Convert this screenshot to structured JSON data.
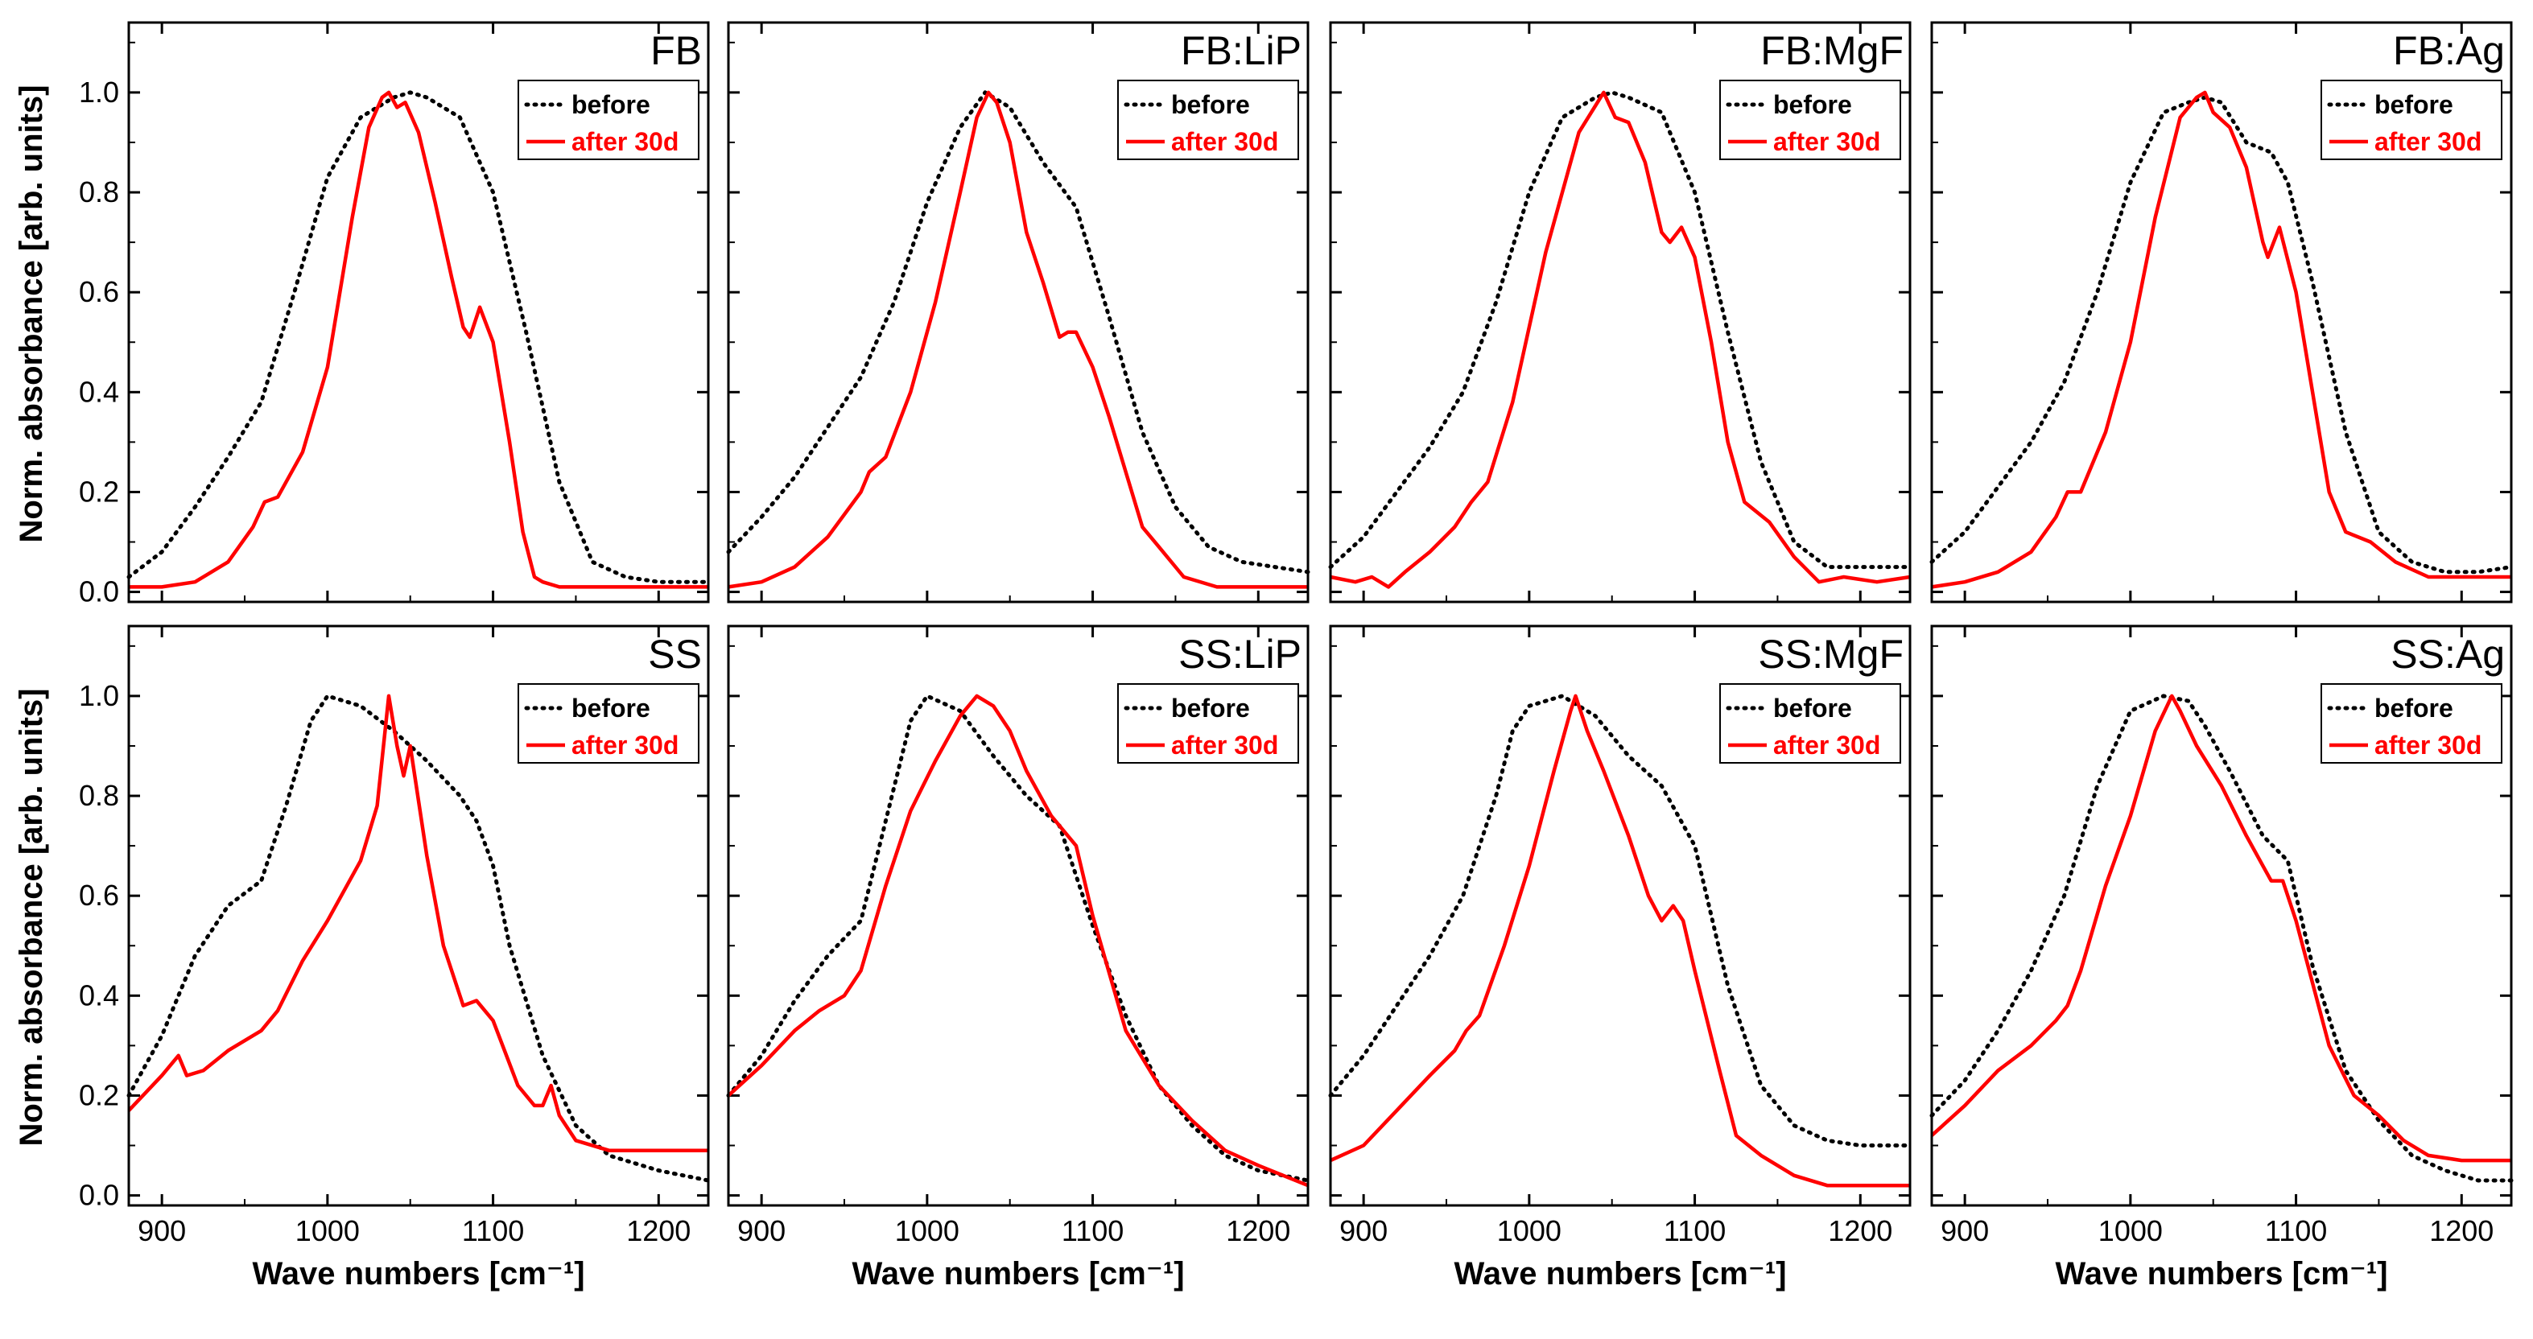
{
  "colors": {
    "before": "#000000",
    "after": "#ff0000"
  },
  "axes": {
    "xlabel": "Wave numbers [cm⁻¹]",
    "ylabel": "Norm. absorbance [arb. units]",
    "xlim": [
      880,
      1230
    ],
    "ylim": [
      -0.02,
      1.14
    ],
    "xticks": [
      "900",
      "1000",
      "1100",
      "1200"
    ],
    "yticks": [
      "0.0",
      "0.2",
      "0.4",
      "0.6",
      "0.8",
      "1.0"
    ]
  },
  "chart_data": [
    {
      "type": "line",
      "title": "FB",
      "xlabel": "",
      "ylabel": "Norm. absorbance [arb. units]",
      "xlim": [
        880,
        1230
      ],
      "ylim": [
        -0.02,
        1.14
      ],
      "grid": false,
      "legend": "top-right",
      "series": [
        {
          "name": "before",
          "style": "dotted",
          "color": "#000000",
          "x": [
            880,
            900,
            920,
            940,
            960,
            980,
            1000,
            1020,
            1040,
            1050,
            1060,
            1080,
            1100,
            1120,
            1140,
            1160,
            1180,
            1200,
            1230
          ],
          "y": [
            0.03,
            0.08,
            0.17,
            0.27,
            0.38,
            0.6,
            0.83,
            0.95,
            0.99,
            1.0,
            0.99,
            0.95,
            0.8,
            0.52,
            0.22,
            0.06,
            0.03,
            0.02,
            0.02
          ]
        },
        {
          "name": "after 30d",
          "style": "solid",
          "color": "#ff0000",
          "x": [
            880,
            900,
            920,
            940,
            955,
            962,
            970,
            985,
            1000,
            1015,
            1025,
            1033,
            1037,
            1042,
            1047,
            1055,
            1065,
            1075,
            1082,
            1086,
            1092,
            1100,
            1110,
            1118,
            1125,
            1130,
            1140,
            1160,
            1200,
            1230
          ],
          "y": [
            0.01,
            0.01,
            0.02,
            0.06,
            0.13,
            0.18,
            0.19,
            0.28,
            0.45,
            0.75,
            0.93,
            0.99,
            1.0,
            0.97,
            0.98,
            0.92,
            0.78,
            0.63,
            0.53,
            0.51,
            0.57,
            0.5,
            0.3,
            0.12,
            0.03,
            0.02,
            0.01,
            0.01,
            0.01,
            0.01
          ]
        }
      ]
    },
    {
      "type": "line",
      "title": "FB:LiP",
      "xlabel": "",
      "ylabel": "",
      "xlim": [
        880,
        1230
      ],
      "ylim": [
        -0.02,
        1.14
      ],
      "grid": false,
      "legend": "top-right",
      "series": [
        {
          "name": "before",
          "style": "dotted",
          "color": "#000000",
          "x": [
            880,
            900,
            920,
            940,
            960,
            980,
            1000,
            1020,
            1035,
            1050,
            1070,
            1090,
            1110,
            1130,
            1150,
            1170,
            1190,
            1210,
            1230
          ],
          "y": [
            0.08,
            0.15,
            0.23,
            0.33,
            0.43,
            0.58,
            0.78,
            0.93,
            1.0,
            0.97,
            0.86,
            0.77,
            0.55,
            0.32,
            0.17,
            0.09,
            0.06,
            0.05,
            0.04
          ]
        },
        {
          "name": "after 30d",
          "style": "solid",
          "color": "#ff0000",
          "x": [
            880,
            900,
            920,
            940,
            960,
            965,
            975,
            990,
            1005,
            1020,
            1030,
            1037,
            1042,
            1050,
            1060,
            1070,
            1080,
            1085,
            1090,
            1100,
            1110,
            1120,
            1130,
            1140,
            1155,
            1175,
            1200,
            1230
          ],
          "y": [
            0.01,
            0.02,
            0.05,
            0.11,
            0.2,
            0.24,
            0.27,
            0.4,
            0.58,
            0.8,
            0.95,
            1.0,
            0.98,
            0.9,
            0.72,
            0.62,
            0.51,
            0.52,
            0.52,
            0.45,
            0.35,
            0.24,
            0.13,
            0.09,
            0.03,
            0.01,
            0.01,
            0.01
          ]
        }
      ]
    },
    {
      "type": "line",
      "title": "FB:MgF",
      "xlabel": "",
      "ylabel": "",
      "xlim": [
        880,
        1230
      ],
      "ylim": [
        -0.02,
        1.14
      ],
      "grid": false,
      "legend": "top-right",
      "series": [
        {
          "name": "before",
          "style": "dotted",
          "color": "#000000",
          "x": [
            880,
            900,
            920,
            940,
            960,
            980,
            1000,
            1020,
            1040,
            1050,
            1060,
            1080,
            1100,
            1120,
            1140,
            1160,
            1180,
            1200,
            1230
          ],
          "y": [
            0.05,
            0.11,
            0.2,
            0.29,
            0.4,
            0.58,
            0.8,
            0.95,
            0.99,
            1.0,
            0.99,
            0.96,
            0.8,
            0.52,
            0.26,
            0.1,
            0.05,
            0.05,
            0.05
          ]
        },
        {
          "name": "after 30d",
          "style": "solid",
          "color": "#ff0000",
          "x": [
            880,
            895,
            905,
            915,
            925,
            940,
            955,
            965,
            975,
            990,
            1010,
            1030,
            1045,
            1052,
            1060,
            1070,
            1080,
            1085,
            1092,
            1100,
            1110,
            1120,
            1130,
            1145,
            1160,
            1175,
            1190,
            1210,
            1230
          ],
          "y": [
            0.03,
            0.02,
            0.03,
            0.01,
            0.04,
            0.08,
            0.13,
            0.18,
            0.22,
            0.38,
            0.68,
            0.92,
            1.0,
            0.95,
            0.94,
            0.86,
            0.72,
            0.7,
            0.73,
            0.67,
            0.5,
            0.3,
            0.18,
            0.14,
            0.07,
            0.02,
            0.03,
            0.02,
            0.03
          ]
        }
      ]
    },
    {
      "type": "line",
      "title": "FB:Ag",
      "xlabel": "",
      "ylabel": "",
      "xlim": [
        880,
        1230
      ],
      "ylim": [
        -0.02,
        1.14
      ],
      "grid": false,
      "legend": "top-right",
      "series": [
        {
          "name": "before",
          "style": "dotted",
          "color": "#000000",
          "x": [
            880,
            900,
            920,
            940,
            960,
            980,
            1000,
            1020,
            1035,
            1045,
            1055,
            1070,
            1085,
            1095,
            1110,
            1130,
            1150,
            1170,
            1190,
            1210,
            1230
          ],
          "y": [
            0.06,
            0.12,
            0.21,
            0.3,
            0.42,
            0.6,
            0.82,
            0.96,
            0.98,
            0.99,
            0.98,
            0.9,
            0.88,
            0.82,
            0.62,
            0.32,
            0.12,
            0.06,
            0.04,
            0.04,
            0.05
          ]
        },
        {
          "name": "after 30d",
          "style": "solid",
          "color": "#ff0000",
          "x": [
            880,
            900,
            920,
            940,
            955,
            962,
            970,
            985,
            1000,
            1015,
            1030,
            1040,
            1045,
            1050,
            1060,
            1070,
            1080,
            1083,
            1090,
            1100,
            1110,
            1120,
            1130,
            1145,
            1160,
            1180,
            1200,
            1230
          ],
          "y": [
            0.01,
            0.02,
            0.04,
            0.08,
            0.15,
            0.2,
            0.2,
            0.32,
            0.5,
            0.75,
            0.95,
            0.99,
            1.0,
            0.96,
            0.93,
            0.85,
            0.7,
            0.67,
            0.73,
            0.6,
            0.4,
            0.2,
            0.12,
            0.1,
            0.06,
            0.03,
            0.03,
            0.03
          ]
        }
      ]
    },
    {
      "type": "line",
      "title": "SS",
      "xlabel": "Wave numbers [cm⁻¹]",
      "ylabel": "Norm. absorbance [arb. units]",
      "xlim": [
        880,
        1230
      ],
      "ylim": [
        -0.02,
        1.14
      ],
      "grid": false,
      "legend": "top-right",
      "series": [
        {
          "name": "before",
          "style": "dotted",
          "color": "#000000",
          "x": [
            880,
            900,
            920,
            940,
            960,
            975,
            990,
            1000,
            1020,
            1040,
            1060,
            1080,
            1090,
            1100,
            1110,
            1130,
            1150,
            1170,
            1200,
            1230
          ],
          "y": [
            0.2,
            0.32,
            0.48,
            0.58,
            0.63,
            0.78,
            0.95,
            1.0,
            0.98,
            0.93,
            0.87,
            0.8,
            0.75,
            0.66,
            0.5,
            0.28,
            0.14,
            0.08,
            0.05,
            0.03
          ]
        },
        {
          "name": "after 30d",
          "style": "solid",
          "color": "#ff0000",
          "x": [
            880,
            900,
            910,
            915,
            925,
            940,
            960,
            970,
            985,
            1000,
            1020,
            1030,
            1037,
            1042,
            1046,
            1050,
            1060,
            1070,
            1082,
            1090,
            1100,
            1115,
            1125,
            1130,
            1135,
            1140,
            1150,
            1170,
            1200,
            1230
          ],
          "y": [
            0.17,
            0.24,
            0.28,
            0.24,
            0.25,
            0.29,
            0.33,
            0.37,
            0.47,
            0.55,
            0.67,
            0.78,
            1.0,
            0.9,
            0.84,
            0.9,
            0.68,
            0.5,
            0.38,
            0.39,
            0.35,
            0.22,
            0.18,
            0.18,
            0.22,
            0.16,
            0.11,
            0.09,
            0.09,
            0.09
          ]
        }
      ]
    },
    {
      "type": "line",
      "title": "SS:LiP",
      "xlabel": "Wave numbers [cm⁻¹]",
      "ylabel": "",
      "xlim": [
        880,
        1230
      ],
      "ylim": [
        -0.02,
        1.14
      ],
      "grid": false,
      "legend": "top-right",
      "series": [
        {
          "name": "before",
          "style": "dotted",
          "color": "#000000",
          "x": [
            880,
            900,
            920,
            940,
            960,
            975,
            990,
            1000,
            1020,
            1040,
            1060,
            1080,
            1100,
            1120,
            1140,
            1160,
            1180,
            1200,
            1230
          ],
          "y": [
            0.2,
            0.28,
            0.39,
            0.48,
            0.55,
            0.75,
            0.95,
            1.0,
            0.97,
            0.88,
            0.8,
            0.74,
            0.54,
            0.36,
            0.22,
            0.14,
            0.08,
            0.05,
            0.03
          ]
        },
        {
          "name": "after 30d",
          "style": "solid",
          "color": "#ff0000",
          "x": [
            880,
            900,
            920,
            935,
            950,
            960,
            975,
            990,
            1005,
            1020,
            1030,
            1040,
            1050,
            1060,
            1075,
            1085,
            1090,
            1100,
            1120,
            1140,
            1160,
            1180,
            1200,
            1230
          ],
          "y": [
            0.2,
            0.26,
            0.33,
            0.37,
            0.4,
            0.45,
            0.62,
            0.77,
            0.87,
            0.96,
            1.0,
            0.98,
            0.93,
            0.85,
            0.76,
            0.72,
            0.7,
            0.56,
            0.33,
            0.22,
            0.15,
            0.09,
            0.06,
            0.02
          ]
        }
      ]
    },
    {
      "type": "line",
      "title": "SS:MgF",
      "xlabel": "Wave numbers [cm⁻¹]",
      "ylabel": "",
      "xlim": [
        880,
        1230
      ],
      "ylim": [
        -0.02,
        1.14
      ],
      "grid": false,
      "legend": "top-right",
      "series": [
        {
          "name": "before",
          "style": "dotted",
          "color": "#000000",
          "x": [
            880,
            900,
            920,
            940,
            960,
            980,
            990,
            1000,
            1020,
            1040,
            1060,
            1080,
            1100,
            1120,
            1140,
            1160,
            1180,
            1200,
            1230
          ],
          "y": [
            0.2,
            0.28,
            0.38,
            0.48,
            0.6,
            0.8,
            0.93,
            0.98,
            1.0,
            0.96,
            0.88,
            0.82,
            0.7,
            0.42,
            0.22,
            0.14,
            0.11,
            0.1,
            0.1
          ]
        },
        {
          "name": "after 30d",
          "style": "solid",
          "color": "#ff0000",
          "x": [
            880,
            900,
            920,
            940,
            955,
            962,
            970,
            985,
            1000,
            1015,
            1025,
            1028,
            1035,
            1045,
            1060,
            1072,
            1080,
            1087,
            1093,
            1100,
            1115,
            1125,
            1140,
            1160,
            1180,
            1200,
            1230
          ],
          "y": [
            0.07,
            0.1,
            0.17,
            0.24,
            0.29,
            0.33,
            0.36,
            0.5,
            0.66,
            0.85,
            0.97,
            1.0,
            0.93,
            0.85,
            0.72,
            0.6,
            0.55,
            0.58,
            0.55,
            0.45,
            0.25,
            0.12,
            0.08,
            0.04,
            0.02,
            0.02,
            0.02
          ]
        }
      ]
    },
    {
      "type": "line",
      "title": "SS:Ag",
      "xlabel": "Wave numbers [cm⁻¹]",
      "ylabel": "",
      "xlim": [
        880,
        1230
      ],
      "ylim": [
        -0.02,
        1.14
      ],
      "grid": false,
      "legend": "top-right",
      "series": [
        {
          "name": "before",
          "style": "dotted",
          "color": "#000000",
          "x": [
            880,
            900,
            920,
            940,
            960,
            980,
            1000,
            1020,
            1035,
            1045,
            1060,
            1080,
            1095,
            1110,
            1130,
            1150,
            1170,
            1190,
            1210,
            1230
          ],
          "y": [
            0.16,
            0.23,
            0.33,
            0.45,
            0.6,
            0.82,
            0.97,
            1.0,
            0.99,
            0.94,
            0.85,
            0.72,
            0.67,
            0.46,
            0.25,
            0.15,
            0.08,
            0.05,
            0.03,
            0.03
          ]
        },
        {
          "name": "after 30d",
          "style": "solid",
          "color": "#ff0000",
          "x": [
            880,
            900,
            920,
            940,
            955,
            962,
            970,
            985,
            1000,
            1015,
            1025,
            1030,
            1040,
            1055,
            1070,
            1080,
            1085,
            1092,
            1100,
            1120,
            1135,
            1150,
            1165,
            1180,
            1200,
            1230
          ],
          "y": [
            0.12,
            0.18,
            0.25,
            0.3,
            0.35,
            0.38,
            0.45,
            0.62,
            0.76,
            0.93,
            1.0,
            0.97,
            0.9,
            0.82,
            0.72,
            0.66,
            0.63,
            0.63,
            0.55,
            0.3,
            0.2,
            0.16,
            0.11,
            0.08,
            0.07,
            0.07
          ]
        }
      ]
    }
  ]
}
